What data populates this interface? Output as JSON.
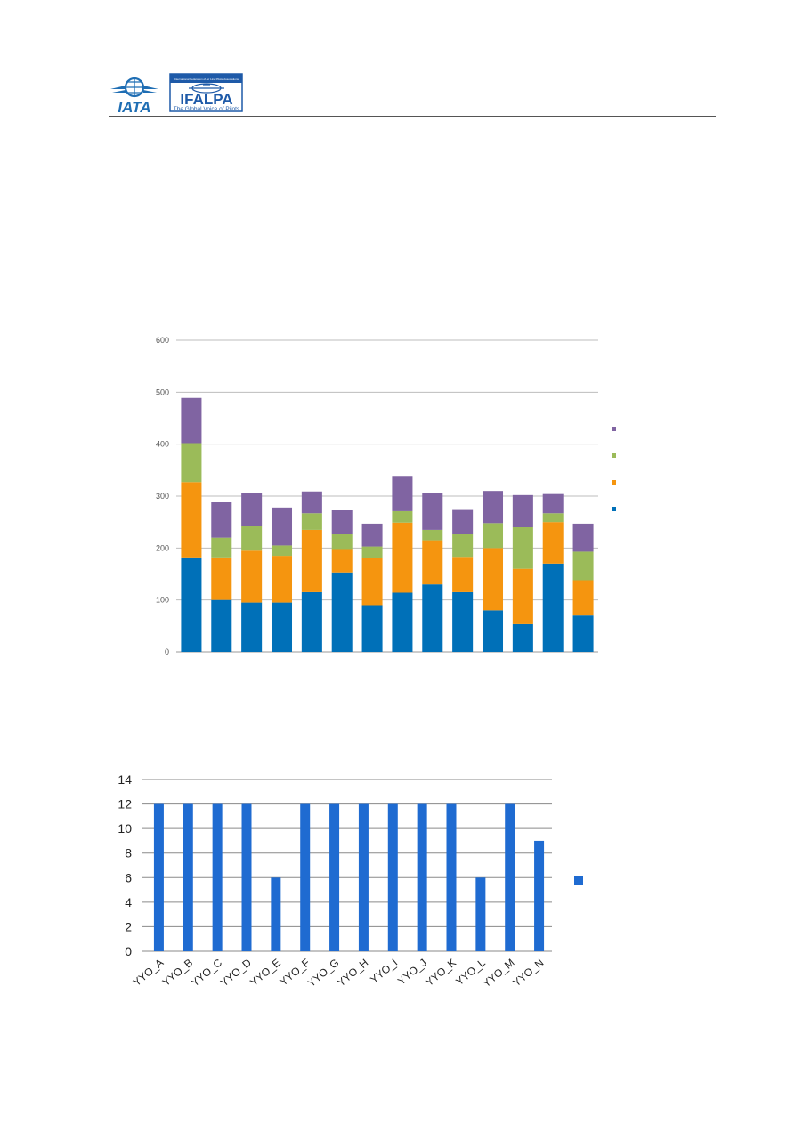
{
  "logos": {
    "iata_text": "IATA",
    "ifalpa_text": "IFALPA",
    "ifalpa_tagline": "The Global Voice of Pilots",
    "ifalpa_banner": "International Federation of Air Line Pilots' Associations",
    "iata_color": "#1f6eb4",
    "ifalpa_color": "#1e5aa8"
  },
  "chart_data": [
    {
      "type": "bar",
      "stacked": true,
      "categories": [
        "",
        "",
        "",
        "",
        "",
        "",
        "",
        "",
        "",
        "",
        "",
        "",
        "",
        ""
      ],
      "series": [
        {
          "color": "#0070b8",
          "values": [
            182,
            100,
            95,
            95,
            115,
            153,
            90,
            114,
            130,
            115,
            80,
            55,
            170,
            70
          ]
        },
        {
          "color": "#f5950f",
          "values": [
            145,
            82,
            100,
            90,
            120,
            45,
            90,
            135,
            85,
            68,
            120,
            105,
            80,
            68
          ]
        },
        {
          "color": "#9bbb59",
          "values": [
            75,
            38,
            47,
            20,
            32,
            30,
            23,
            22,
            20,
            45,
            48,
            80,
            17,
            55
          ]
        },
        {
          "color": "#8064a2",
          "values": [
            87,
            68,
            64,
            73,
            42,
            45,
            44,
            68,
            71,
            47,
            62,
            62,
            37,
            54
          ]
        }
      ],
      "ylim": [
        0,
        600
      ],
      "yticks": [
        0,
        100,
        200,
        300,
        400,
        500,
        600
      ],
      "grid": true,
      "legend": "right"
    },
    {
      "type": "bar",
      "categories": [
        "YYO_A",
        "YYO_B",
        "YYO_C",
        "YYO_D",
        "YYO_E",
        "YYO_F",
        "YYO_G",
        "YYO_H",
        "YYO_I",
        "YYO_J",
        "YYO_K",
        "YYO_L",
        "YYO_M",
        "YYO_N"
      ],
      "series": [
        {
          "color": "#1f6bd1",
          "values": [
            12,
            12,
            12,
            12,
            6,
            12,
            12,
            12,
            12,
            12,
            12,
            6,
            12,
            9
          ]
        }
      ],
      "ylim": [
        0,
        14
      ],
      "yticks": [
        0,
        2,
        4,
        6,
        8,
        10,
        12,
        14
      ],
      "grid": true,
      "legend": "right"
    }
  ]
}
